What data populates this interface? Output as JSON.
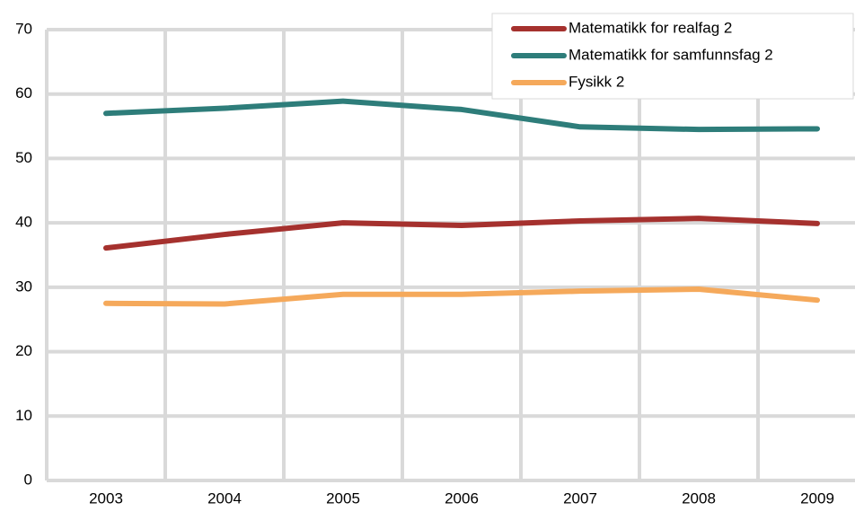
{
  "chart_data": {
    "type": "line",
    "categories": [
      "2003",
      "2004",
      "2005",
      "2006",
      "2007",
      "2008",
      "2009"
    ],
    "series": [
      {
        "name": "Matematikk for realfag 2",
        "color": "#a5312e",
        "values": [
          36.1,
          38.2,
          40.0,
          39.6,
          40.3,
          40.7,
          39.9
        ]
      },
      {
        "name": "Matematikk for samfunnsfag 2",
        "color": "#2e7d7a",
        "values": [
          57.0,
          57.8,
          58.9,
          57.6,
          54.9,
          54.5,
          54.6
        ]
      },
      {
        "name": "Fysikk 2",
        "color": "#f5a95b",
        "values": [
          27.5,
          27.4,
          28.9,
          28.9,
          29.4,
          29.7,
          28.0
        ]
      }
    ],
    "ylim": [
      0,
      70
    ],
    "yticks": [
      0,
      10,
      20,
      30,
      40,
      50,
      60,
      70
    ],
    "grid": true,
    "legend": "top-right"
  }
}
